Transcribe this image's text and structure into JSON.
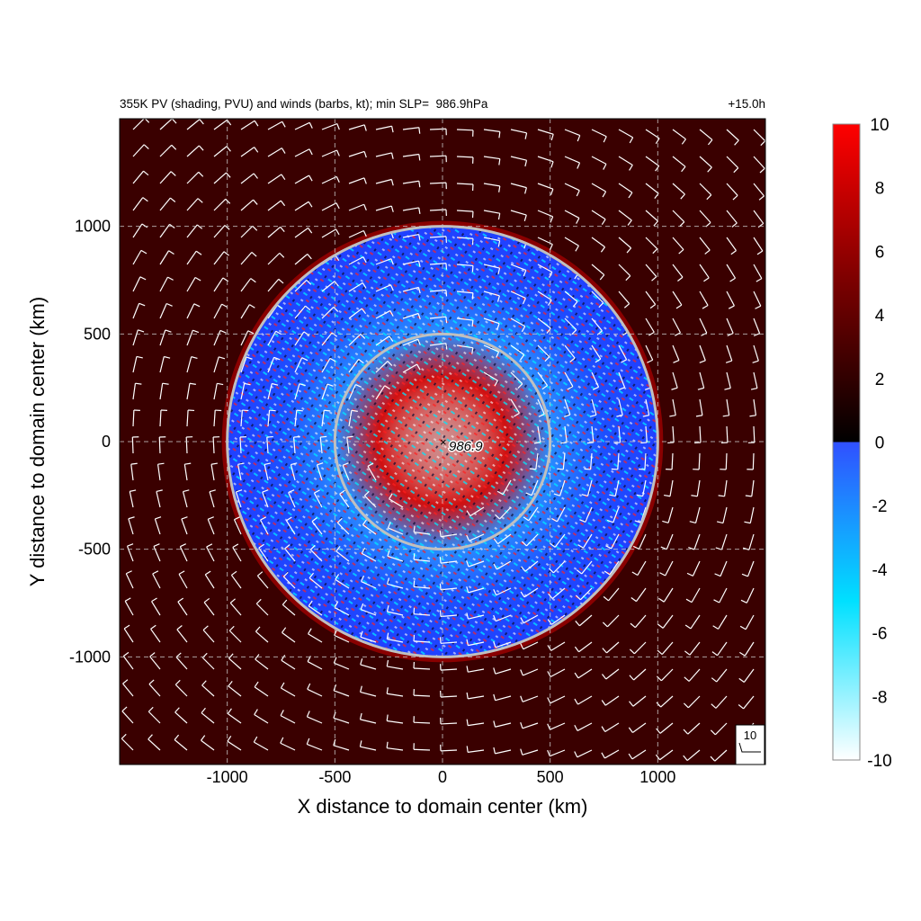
{
  "chart_data": {
    "type": "heatmap",
    "title": "355K PV (shading, PVU) and winds (barbs, kt); min SLP=  986.9hPa",
    "forecast_time": "+15.0h",
    "xlabel": "X distance to domain center (km)",
    "ylabel": "Y distance to domain center (km)",
    "xlim": [
      -1500,
      1500
    ],
    "ylim": [
      -1500,
      1500
    ],
    "x_ticks": [
      -1000,
      -500,
      0,
      500,
      1000
    ],
    "y_ticks": [
      -1000,
      -500,
      0,
      500,
      1000
    ],
    "grid": true,
    "colorbar": {
      "min": -10,
      "max": 10,
      "ticks": [
        10,
        8,
        6,
        4,
        2,
        0,
        -2,
        -4,
        -6,
        -8,
        -10
      ],
      "colors": {
        "max": "#ff0000",
        "mid_positive": "#7a0000",
        "zero_positive": "#000000",
        "zero_negative": "#3050ff",
        "mid_negative": "#00e0ff",
        "min": "#ffffff"
      }
    },
    "background_color": "#3a0000",
    "rings_km": [
      1000,
      500
    ],
    "storm_center": {
      "x": 0,
      "y": 0,
      "label": "986.9"
    },
    "barb_reference": {
      "label": "10"
    }
  }
}
